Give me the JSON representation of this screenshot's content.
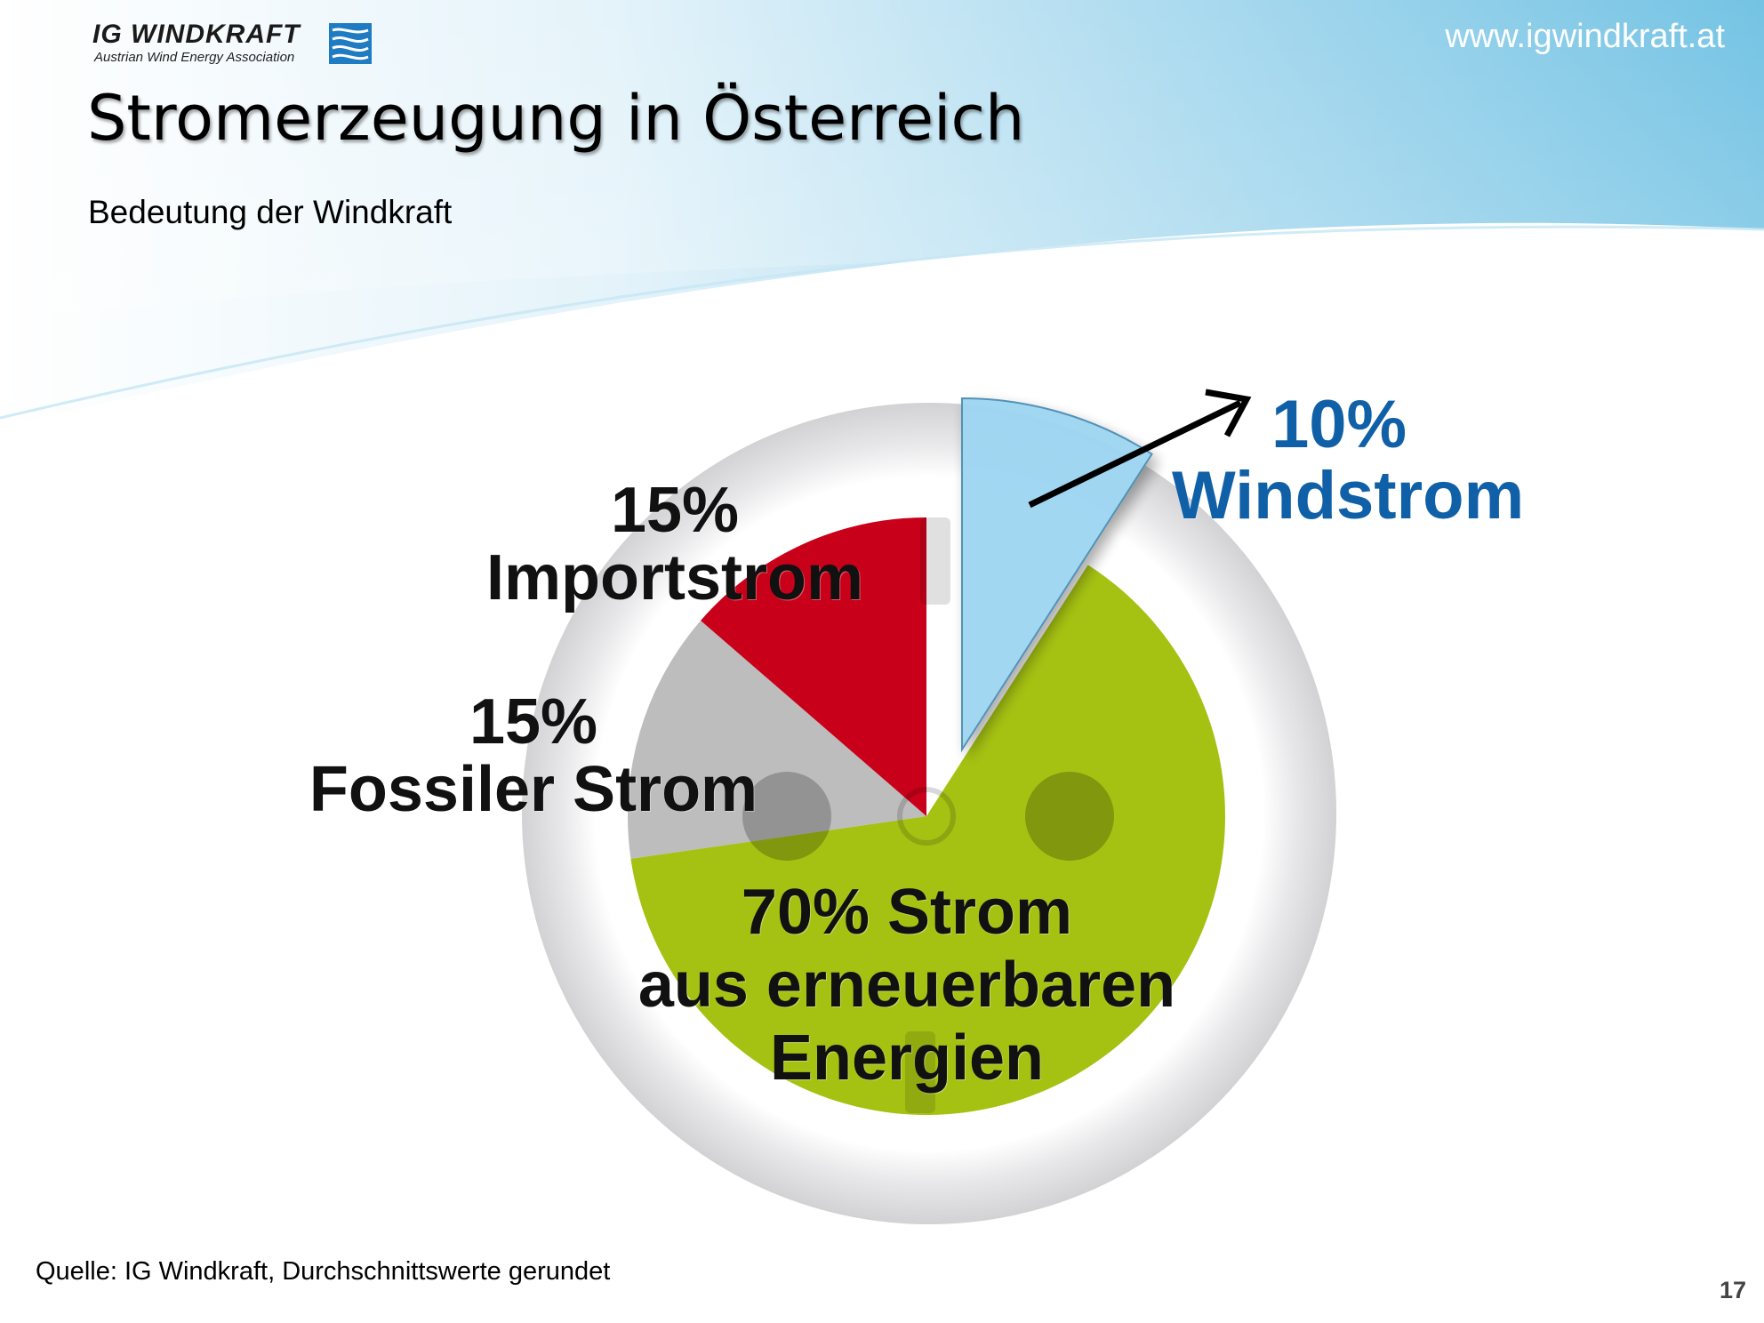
{
  "header": {
    "logo": {
      "name": "IG WINDKRAFT",
      "subtitle": "Austrian Wind Energy Association"
    },
    "website": "www.igwindkraft.at",
    "title": "Stromerzeugung in Österreich",
    "subtitle": "Bedeutung der Windkraft"
  },
  "colors": {
    "header_gradient_start": "#ffffff",
    "header_gradient_end": "#7ec8e6",
    "renewable": "#a5c213",
    "wind": "#9fd6f2",
    "import": "#c8001a",
    "fossil": "#b9b9bb",
    "windstrom_label": "#1060a8"
  },
  "chart_data": {
    "type": "pie",
    "title": "",
    "slices": [
      {
        "label_pct": "10%",
        "label_name": "Windstrom",
        "value": 10,
        "color": "#9fd6f2",
        "exploded": true
      },
      {
        "label_pct": "70% Strom",
        "label_name": "aus erneuerbaren Energien",
        "value": 70,
        "color": "#a5c213",
        "exploded": false
      },
      {
        "label_pct": "15%",
        "label_name": "Fossiler Strom",
        "value": 15,
        "color": "#b9b9bb",
        "exploded": false
      },
      {
        "label_pct": "15%",
        "label_name": "Importstrom",
        "value": 15,
        "color": "#c8001a",
        "exploded": false
      }
    ],
    "renewable_label_line2": "aus erneuerbaren",
    "renewable_label_line3": "Energien"
  },
  "footer": {
    "source": "Quelle: IG Windkraft, Durchschnittswerte gerundet",
    "page_number": "17"
  }
}
